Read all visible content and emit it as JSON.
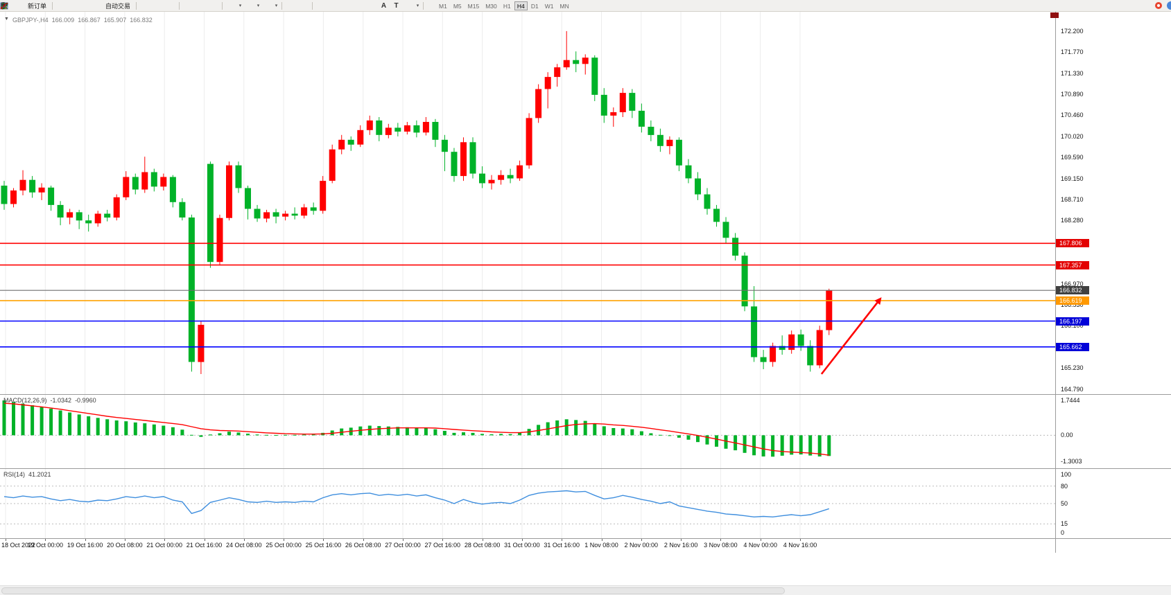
{
  "toolbar": {
    "new_order_label": "新订单",
    "auto_trading_label": "自动交易",
    "timeframes": [
      "M1",
      "M5",
      "M15",
      "M30",
      "H1",
      "H4",
      "D1",
      "W1",
      "MN"
    ],
    "active_timeframe": "H4",
    "text_tool_glyph": "A",
    "label_tool_glyph": "T"
  },
  "chart_header": {
    "symbol": "GBPJPY-,H4",
    "open": "166.009",
    "high": "166.867",
    "low": "165.907",
    "close": "166.832"
  },
  "price_scale": {
    "labels": [
      172.2,
      171.77,
      171.33,
      170.89,
      170.46,
      170.02,
      169.59,
      169.15,
      168.71,
      168.28,
      166.97,
      166.53,
      166.1,
      165.23,
      164.79
    ]
  },
  "hlines": [
    {
      "price": 167.806,
      "line_color": "#ff0000",
      "tag_color": "#e30202",
      "width": 1.6
    },
    {
      "price": 167.357,
      "line_color": "#ff0000",
      "tag_color": "#e30202",
      "width": 1.6
    },
    {
      "price": 166.832,
      "line_color": "#6f6f6f",
      "tag_color": "#404040",
      "width": 1.1
    },
    {
      "price": 166.619,
      "line_color": "#ffa200",
      "tag_color": "#ff9900",
      "width": 1.6
    },
    {
      "price": 166.197,
      "line_color": "#0000ff",
      "tag_color": "#0202d8",
      "width": 1.6
    },
    {
      "price": 165.662,
      "line_color": "#0000ff",
      "tag_color": "#0202d8",
      "width": 1.6
    }
  ],
  "macd": {
    "label": "MACD(12,26,9)",
    "value_main": "-1.0342",
    "value_signal": "-0.9960",
    "scale": [
      "1.7444",
      "0.00",
      "-1.3003"
    ]
  },
  "rsi": {
    "label": "RSI(14)",
    "value": "41.2021",
    "scale": [
      "100",
      "80",
      "50",
      "15",
      "0"
    ],
    "levels": [
      80,
      50,
      15
    ]
  },
  "time_axis": {
    "labels": [
      "18 Oct 2022",
      "19 Oct 00:00",
      "19 Oct 16:00",
      "20 Oct 08:00",
      "21 Oct 00:00",
      "21 Oct 16:00",
      "24 Oct 08:00",
      "25 Oct 00:00",
      "25 Oct 16:00",
      "26 Oct 08:00",
      "27 Oct 00:00",
      "27 Oct 16:00",
      "28 Oct 08:00",
      "31 Oct 00:00",
      "31 Oct 16:00",
      "1 Nov 08:00",
      "2 Nov 00:00",
      "2 Nov 16:00",
      "3 Nov 08:00",
      "4 Nov 00:00",
      "4 Nov 16:00"
    ]
  },
  "chart_data": {
    "type": "candlestick",
    "symbol": "GBPJPY",
    "timeframe": "H4",
    "title": "GBPJPY-,H4 166.009 166.867 165.907 166.832",
    "ylim": [
      164.79,
      172.2
    ],
    "colors": {
      "bull": "#ff0000",
      "bear": "#00b228",
      "macd_histogram": "#00b228",
      "macd_signal": "#ff0000",
      "rsi_line": "#3e8ede"
    },
    "candles": [
      [
        169.0,
        169.1,
        168.5,
        168.62
      ],
      [
        168.62,
        168.95,
        168.55,
        168.9
      ],
      [
        168.9,
        169.32,
        168.8,
        169.12
      ],
      [
        169.12,
        169.2,
        168.75,
        168.86
      ],
      [
        168.86,
        169.05,
        168.7,
        168.96
      ],
      [
        168.96,
        169.0,
        168.48,
        168.6
      ],
      [
        168.6,
        168.68,
        168.18,
        168.34
      ],
      [
        168.34,
        168.52,
        168.2,
        168.45
      ],
      [
        168.45,
        168.5,
        168.1,
        168.28
      ],
      [
        168.28,
        168.4,
        168.05,
        168.22
      ],
      [
        168.22,
        168.48,
        168.15,
        168.42
      ],
      [
        168.42,
        168.5,
        168.26,
        168.34
      ],
      [
        168.34,
        168.82,
        168.28,
        168.76
      ],
      [
        168.76,
        169.3,
        168.7,
        169.18
      ],
      [
        169.18,
        169.25,
        168.82,
        168.92
      ],
      [
        168.92,
        169.6,
        168.85,
        169.28
      ],
      [
        169.28,
        169.35,
        168.88,
        168.98
      ],
      [
        168.98,
        169.25,
        168.9,
        169.18
      ],
      [
        169.18,
        169.22,
        168.55,
        168.66
      ],
      [
        168.66,
        168.74,
        168.28,
        168.34
      ],
      [
        168.34,
        168.4,
        165.15,
        165.35
      ],
      [
        165.35,
        166.2,
        165.1,
        166.12
      ],
      [
        169.45,
        169.5,
        167.3,
        167.42
      ],
      [
        167.42,
        168.4,
        167.35,
        168.33
      ],
      [
        168.33,
        169.5,
        168.28,
        169.42
      ],
      [
        169.42,
        169.5,
        168.85,
        168.95
      ],
      [
        168.95,
        169.0,
        168.3,
        168.52
      ],
      [
        168.52,
        168.6,
        168.25,
        168.32
      ],
      [
        168.32,
        168.5,
        168.24,
        168.45
      ],
      [
        168.45,
        168.52,
        168.22,
        168.36
      ],
      [
        168.36,
        168.48,
        168.28,
        168.42
      ],
      [
        168.42,
        168.55,
        168.3,
        168.38
      ],
      [
        168.38,
        168.62,
        168.32,
        168.55
      ],
      [
        168.55,
        168.65,
        168.4,
        168.48
      ],
      [
        168.48,
        169.2,
        168.42,
        169.1
      ],
      [
        169.1,
        169.85,
        169.05,
        169.75
      ],
      [
        169.75,
        170.05,
        169.65,
        169.95
      ],
      [
        169.95,
        170.02,
        169.72,
        169.85
      ],
      [
        169.85,
        170.25,
        169.8,
        170.15
      ],
      [
        170.15,
        170.45,
        170.05,
        170.35
      ],
      [
        170.35,
        170.42,
        169.92,
        170.05
      ],
      [
        170.05,
        170.28,
        169.98,
        170.2
      ],
      [
        170.2,
        170.3,
        170.02,
        170.12
      ],
      [
        170.12,
        170.32,
        170.06,
        170.25
      ],
      [
        170.25,
        170.35,
        170.0,
        170.1
      ],
      [
        170.1,
        170.42,
        170.04,
        170.32
      ],
      [
        170.32,
        170.38,
        169.8,
        169.95
      ],
      [
        169.95,
        170.05,
        169.3,
        169.7
      ],
      [
        169.7,
        169.78,
        169.08,
        169.2
      ],
      [
        169.2,
        170.0,
        169.1,
        169.9
      ],
      [
        169.9,
        170.0,
        169.15,
        169.25
      ],
      [
        169.25,
        169.4,
        168.95,
        169.05
      ],
      [
        169.05,
        169.22,
        168.92,
        169.12
      ],
      [
        169.12,
        169.32,
        169.02,
        169.22
      ],
      [
        169.22,
        169.35,
        169.05,
        169.15
      ],
      [
        169.15,
        169.52,
        169.1,
        169.42
      ],
      [
        169.42,
        170.5,
        169.35,
        170.4
      ],
      [
        170.4,
        171.1,
        170.3,
        171.0
      ],
      [
        171.0,
        171.35,
        170.6,
        171.25
      ],
      [
        171.25,
        171.52,
        171.05,
        171.45
      ],
      [
        171.45,
        172.2,
        171.4,
        171.6
      ],
      [
        171.6,
        171.78,
        171.35,
        171.52
      ],
      [
        171.52,
        171.72,
        171.3,
        171.65
      ],
      [
        171.65,
        171.7,
        170.75,
        170.88
      ],
      [
        170.88,
        171.02,
        170.3,
        170.45
      ],
      [
        170.45,
        170.62,
        170.22,
        170.52
      ],
      [
        170.52,
        171.02,
        170.42,
        170.92
      ],
      [
        170.92,
        171.0,
        170.4,
        170.55
      ],
      [
        170.55,
        170.7,
        170.1,
        170.22
      ],
      [
        170.22,
        170.35,
        169.92,
        170.05
      ],
      [
        170.05,
        170.18,
        169.7,
        169.82
      ],
      [
        169.82,
        170.02,
        169.65,
        169.95
      ],
      [
        169.95,
        170.0,
        169.3,
        169.42
      ],
      [
        169.42,
        169.55,
        169.05,
        169.15
      ],
      [
        169.15,
        169.28,
        168.7,
        168.82
      ],
      [
        168.82,
        168.95,
        168.4,
        168.52
      ],
      [
        168.52,
        168.6,
        168.15,
        168.25
      ],
      [
        168.25,
        168.35,
        167.8,
        167.92
      ],
      [
        167.92,
        168.02,
        167.45,
        167.55
      ],
      [
        167.55,
        167.62,
        166.4,
        166.5
      ],
      [
        166.5,
        166.92,
        165.35,
        165.45
      ],
      [
        165.45,
        165.6,
        165.2,
        165.35
      ],
      [
        165.35,
        165.75,
        165.25,
        165.68
      ],
      [
        165.68,
        165.9,
        165.5,
        165.6
      ],
      [
        165.6,
        166.0,
        165.52,
        165.92
      ],
      [
        165.92,
        166.02,
        165.58,
        165.68
      ],
      [
        165.68,
        165.8,
        165.15,
        165.28
      ],
      [
        165.28,
        166.1,
        165.22,
        166.01
      ],
      [
        166.009,
        166.867,
        165.907,
        166.832
      ]
    ],
    "macd_histogram": [
      1.74,
      1.66,
      1.58,
      1.5,
      1.42,
      1.33,
      1.24,
      1.14,
      1.04,
      0.95,
      0.87,
      0.8,
      0.74,
      0.7,
      0.64,
      0.6,
      0.54,
      0.48,
      0.4,
      0.28,
      0.02,
      -0.08,
      0.04,
      0.1,
      0.18,
      0.14,
      0.08,
      0.04,
      0.02,
      0.01,
      0.02,
      0.02,
      0.03,
      0.04,
      0.12,
      0.24,
      0.34,
      0.38,
      0.44,
      0.48,
      0.46,
      0.44,
      0.42,
      0.4,
      0.38,
      0.37,
      0.3,
      0.22,
      0.12,
      0.15,
      0.12,
      0.07,
      0.05,
      0.07,
      0.06,
      0.12,
      0.32,
      0.52,
      0.65,
      0.74,
      0.8,
      0.76,
      0.72,
      0.6,
      0.45,
      0.36,
      0.34,
      0.3,
      0.2,
      0.1,
      0.02,
      -0.03,
      -0.12,
      -0.22,
      -0.34,
      -0.46,
      -0.57,
      -0.67,
      -0.75,
      -0.88,
      -1.0,
      -1.06,
      -1.07,
      -1.02,
      -0.97,
      -0.96,
      -1.01,
      -1.06,
      -1.0342
    ],
    "macd_signal": [
      1.6,
      1.57,
      1.52,
      1.47,
      1.42,
      1.36,
      1.3,
      1.23,
      1.16,
      1.09,
      1.02,
      0.95,
      0.89,
      0.84,
      0.79,
      0.74,
      0.69,
      0.64,
      0.59,
      0.53,
      0.43,
      0.33,
      0.27,
      0.24,
      0.23,
      0.21,
      0.18,
      0.15,
      0.12,
      0.1,
      0.08,
      0.07,
      0.06,
      0.06,
      0.07,
      0.1,
      0.15,
      0.2,
      0.25,
      0.29,
      0.33,
      0.35,
      0.37,
      0.37,
      0.37,
      0.37,
      0.36,
      0.33,
      0.29,
      0.26,
      0.23,
      0.2,
      0.17,
      0.15,
      0.13,
      0.13,
      0.17,
      0.24,
      0.32,
      0.4,
      0.48,
      0.54,
      0.57,
      0.58,
      0.56,
      0.52,
      0.49,
      0.45,
      0.4,
      0.34,
      0.27,
      0.21,
      0.14,
      0.07,
      -0.01,
      -0.1,
      -0.19,
      -0.29,
      -0.38,
      -0.48,
      -0.58,
      -0.68,
      -0.76,
      -0.81,
      -0.84,
      -0.86,
      -0.89,
      -0.93,
      -0.996
    ],
    "rsi_values": [
      62,
      60,
      63,
      61,
      62,
      58,
      55,
      57,
      54,
      53,
      56,
      55,
      58,
      62,
      60,
      63,
      60,
      62,
      56,
      53,
      33,
      38,
      52,
      56,
      60,
      57,
      53,
      52,
      54,
      52,
      53,
      52,
      54,
      53,
      60,
      65,
      67,
      65,
      67,
      68,
      64,
      66,
      64,
      66,
      63,
      65,
      60,
      56,
      50,
      57,
      52,
      49,
      51,
      52,
      50,
      56,
      64,
      68,
      70,
      71,
      72,
      70,
      71,
      64,
      58,
      60,
      64,
      61,
      57,
      54,
      50,
      53,
      46,
      43,
      40,
      37,
      35,
      32,
      31,
      29,
      27,
      28,
      27,
      29,
      31,
      29,
      31,
      36,
      41.2
    ],
    "annotations": [
      {
        "type": "arrow",
        "color": "#ff0000",
        "from_index": 87.2,
        "from_price": 165.1,
        "to_index": 93.6,
        "to_price": 166.69
      }
    ]
  }
}
